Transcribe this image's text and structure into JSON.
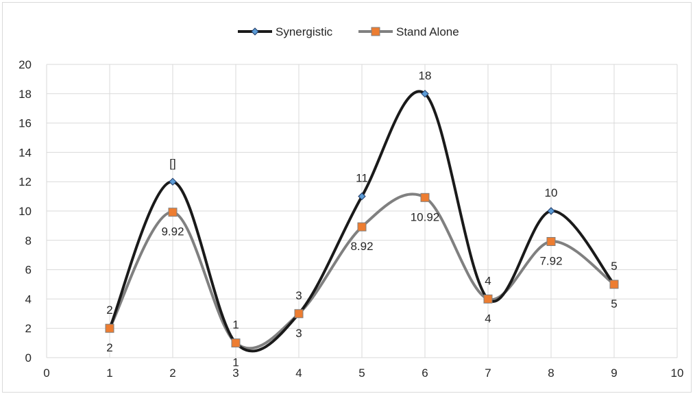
{
  "chart_data": {
    "type": "line",
    "title": "",
    "xlabel": "",
    "ylabel": "",
    "xlim": [
      0,
      10
    ],
    "ylim": [
      0,
      20
    ],
    "x_ticks": [
      0,
      1,
      2,
      3,
      4,
      5,
      6,
      7,
      8,
      9,
      10
    ],
    "y_ticks": [
      0,
      2,
      4,
      6,
      8,
      10,
      12,
      14,
      16,
      18,
      20
    ],
    "grid": "both",
    "legend": "top",
    "smooth": true,
    "series": [
      {
        "name": "Synergistic",
        "color": "#1a1a1a",
        "marker": "diamond",
        "marker_color": "#5b9bd5",
        "x": [
          1,
          2,
          3,
          4,
          5,
          6,
          7,
          8,
          9
        ],
        "y": [
          2,
          12,
          1,
          3,
          11,
          18,
          4,
          10,
          5
        ],
        "labels": [
          "2",
          "[]",
          "1",
          "3",
          "11",
          "18",
          "4",
          "10",
          "5"
        ]
      },
      {
        "name": "Stand Alone",
        "color": "#808080",
        "marker": "square",
        "marker_color": "#ed7d31",
        "x": [
          1,
          2,
          3,
          4,
          5,
          6,
          7,
          8,
          9
        ],
        "y": [
          2,
          9.92,
          1,
          3,
          8.92,
          10.92,
          4,
          7.92,
          5
        ],
        "labels": [
          "2",
          "9.92",
          "1",
          "3",
          "8.92",
          "10.92",
          "4",
          "7.92",
          "5"
        ]
      }
    ]
  }
}
